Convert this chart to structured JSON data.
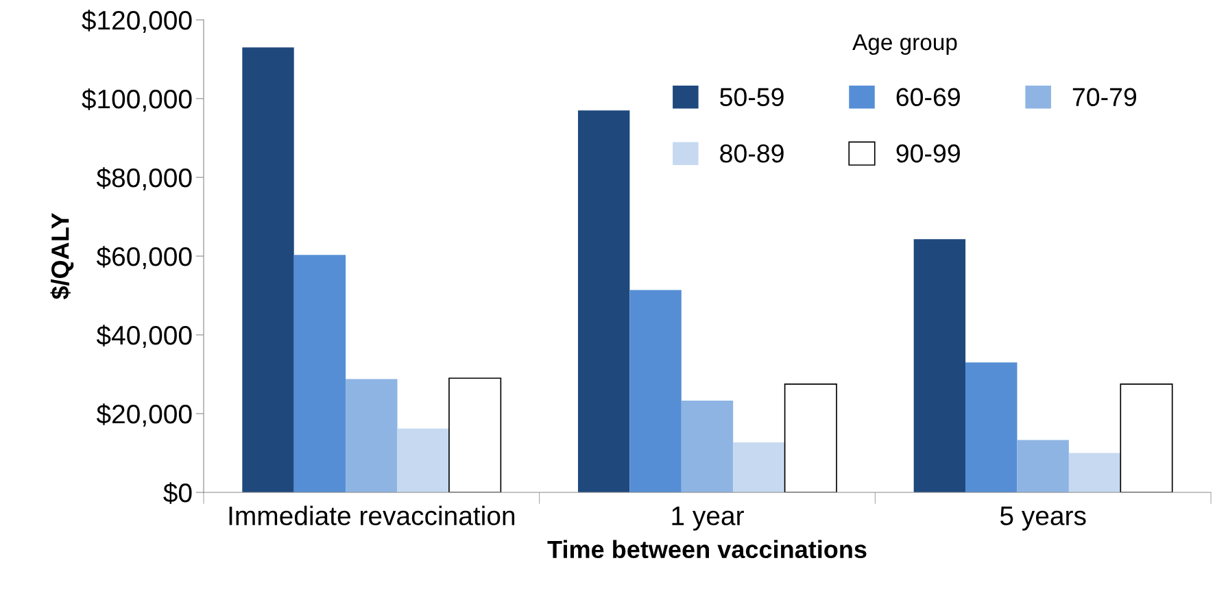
{
  "chart_data": {
    "type": "bar",
    "xlabel": "Time between vaccinations",
    "ylabel": "$/QALY",
    "legend_title": "Age group",
    "legend": "top right",
    "grid": false,
    "categories": [
      "Immediate revaccination",
      "1 year",
      "5 years"
    ],
    "ylim": [
      0,
      120000
    ],
    "yticks": [
      {
        "value": 0,
        "label": "$0"
      },
      {
        "value": 20000,
        "label": "$20,000"
      },
      {
        "value": 40000,
        "label": "$40,000"
      },
      {
        "value": 60000,
        "label": "$60,000"
      },
      {
        "value": 80000,
        "label": "$80,000"
      },
      {
        "value": 100000,
        "label": "$100,000"
      },
      {
        "value": 120000,
        "label": "$120,000"
      }
    ],
    "series": [
      {
        "name": "50-59",
        "color": "#1f497d",
        "values": [
          113000,
          97000,
          64300
        ]
      },
      {
        "name": "60-69",
        "color": "#558ed5",
        "values": [
          60300,
          51400,
          33000
        ]
      },
      {
        "name": "70-79",
        "color": "#8eb4e3",
        "values": [
          28800,
          23300,
          13300
        ]
      },
      {
        "name": "80-89",
        "color": "#c6d9f1",
        "values": [
          16200,
          12700,
          10000
        ]
      },
      {
        "name": "90-99",
        "color": "#ffffff",
        "values": [
          29000,
          27500,
          27500
        ]
      }
    ]
  }
}
